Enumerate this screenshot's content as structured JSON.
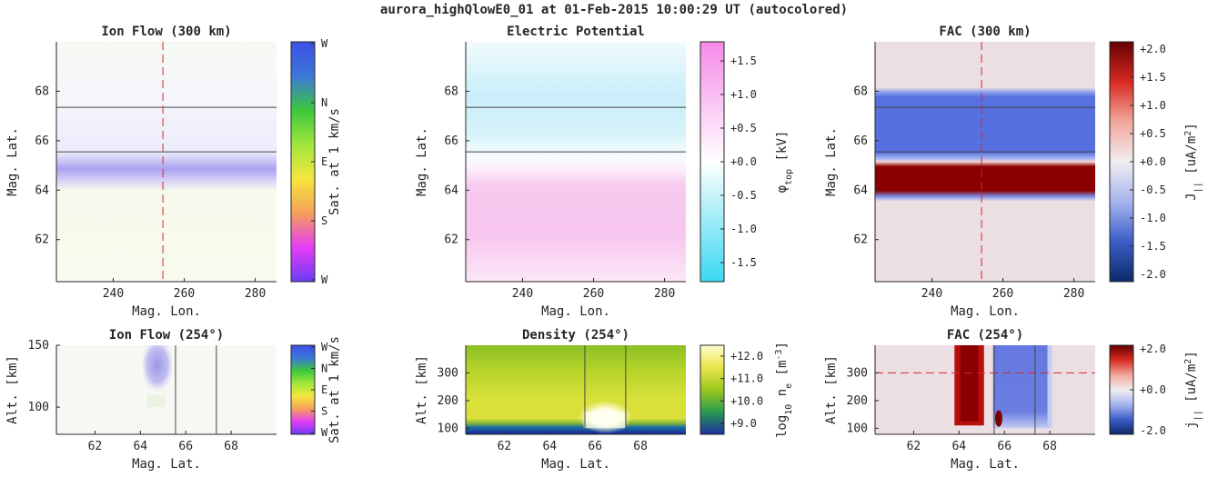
{
  "figure_title": "aurora_highQlowE0_01 at 01-Feb-2015 10:00:29 UT (autocolored)",
  "colors": {
    "axis": "#262626",
    "guide_line": "#d62728",
    "boundary_line": "#444444"
  },
  "chart_data": [
    {
      "id": "ion-flow-300",
      "type": "heatmap",
      "title": "Ion Flow (300 km)",
      "xlabel": "Mag. Lon.",
      "ylabel": "Mag. Lat.",
      "xlim": [
        224,
        286
      ],
      "ylim": [
        60.3,
        70
      ],
      "xticks": [
        240,
        260,
        280
      ],
      "yticks": [
        62,
        64,
        66,
        68
      ],
      "vline": 254,
      "boundaries_lat": [
        65.55,
        67.35
      ],
      "colorbar": {
        "label": "Sat. at 1 km/s",
        "ticks": [
          "W",
          "N",
          "E",
          "S",
          "W"
        ],
        "colors": [
          "#6a3cf5",
          "#e63cf5",
          "#f5a05a",
          "#f5e63c",
          "#a0e63c",
          "#3cc83c",
          "#3c78d8",
          "#3c50e6"
        ]
      }
    },
    {
      "id": "electric-potential",
      "type": "heatmap",
      "title": "Electric Potential",
      "xlabel": "Mag. Lon.",
      "ylabel": "Mag. Lat.",
      "xlim": [
        224,
        286
      ],
      "ylim": [
        60.3,
        70
      ],
      "xticks": [
        240,
        260,
        280
      ],
      "yticks": [
        62,
        64,
        66,
        68
      ],
      "boundaries_lat": [
        65.55,
        67.35
      ],
      "colorbar": {
        "label": "φ_top [kV]",
        "ticks": [
          "+1.5",
          "+1.0",
          "+0.5",
          "+0.0",
          "-0.5",
          "-1.0",
          "-1.5"
        ],
        "colors": [
          "#3ad8f0",
          "#ffffff",
          "#f58ae8"
        ]
      }
    },
    {
      "id": "fac-300",
      "type": "heatmap",
      "title": "FAC (300 km)",
      "xlabel": "Mag. Lon.",
      "ylabel": "Mag. Lat.",
      "xlim": [
        224,
        286
      ],
      "ylim": [
        60.3,
        70
      ],
      "xticks": [
        240,
        260,
        280
      ],
      "yticks": [
        62,
        64,
        66,
        68
      ],
      "vline": 254,
      "boundaries_lat": [
        65.55,
        67.35
      ],
      "colorbar": {
        "label": "J_|| [uA/m²]",
        "ticks": [
          "+2.0",
          "+1.5",
          "+1.0",
          "+0.5",
          "+0.0",
          "-0.5",
          "-1.0",
          "-1.5",
          "-2.0"
        ],
        "colors": [
          "#0c2a6b",
          "#3b5ec7",
          "#a6b4ef",
          "#f1eef0",
          "#f2a79b",
          "#d82a22",
          "#660000"
        ]
      }
    },
    {
      "id": "ion-flow-254",
      "type": "heatmap",
      "title": "Ion Flow (254°)",
      "xlabel": "Mag. Lat.",
      "ylabel": "Alt. [km]",
      "xlim": [
        60.3,
        70
      ],
      "ylim": [
        78,
        150
      ],
      "xticks": [
        62,
        64,
        66,
        68
      ],
      "yticks": [
        100,
        150
      ],
      "boundaries_lat": [
        65.55,
        67.35
      ],
      "colorbar": {
        "label": "Sat. at 1 km/s",
        "ticks": [
          "W",
          "N",
          "E",
          "S",
          "W"
        ],
        "colors": [
          "#6a3cf5",
          "#e63cf5",
          "#f5a05a",
          "#f5e63c",
          "#a0e63c",
          "#3cc83c",
          "#3c78d8",
          "#3c50e6"
        ]
      }
    },
    {
      "id": "density-254",
      "type": "heatmap",
      "title": "Density (254°)",
      "xlabel": "Mag. Lat.",
      "ylabel": "Alt. [km]",
      "xlim": [
        60.3,
        70
      ],
      "ylim": [
        78,
        400
      ],
      "xticks": [
        62,
        64,
        66,
        68
      ],
      "yticks": [
        100,
        200,
        300
      ],
      "boundaries_lat": [
        65.55,
        67.35
      ],
      "colorbar": {
        "label": "log₁₀ n_e [m⁻³]",
        "ticks": [
          "+12.0",
          "+11.0",
          "+10.0",
          "+9.0"
        ],
        "colors": [
          "#1a2fa0",
          "#2a9a50",
          "#9cc81e",
          "#e9e54a",
          "#ffffd0"
        ]
      }
    },
    {
      "id": "fac-254",
      "type": "heatmap",
      "title": "FAC (254°)",
      "xlabel": "Mag. Lat.",
      "ylabel": "Alt. [km]",
      "xlim": [
        60.3,
        70
      ],
      "ylim": [
        78,
        400
      ],
      "xticks": [
        62,
        64,
        66,
        68
      ],
      "yticks": [
        100,
        200,
        300
      ],
      "hline": 300,
      "boundaries_lat": [
        65.55,
        67.35
      ],
      "colorbar": {
        "label": "j_|| [uA/m²]",
        "ticks": [
          "+2.0",
          "+0.0",
          "-2.0"
        ],
        "colors": [
          "#0c2a6b",
          "#3b5ec7",
          "#a6b4ef",
          "#f1eef0",
          "#f2a79b",
          "#d82a22",
          "#660000"
        ]
      }
    }
  ]
}
